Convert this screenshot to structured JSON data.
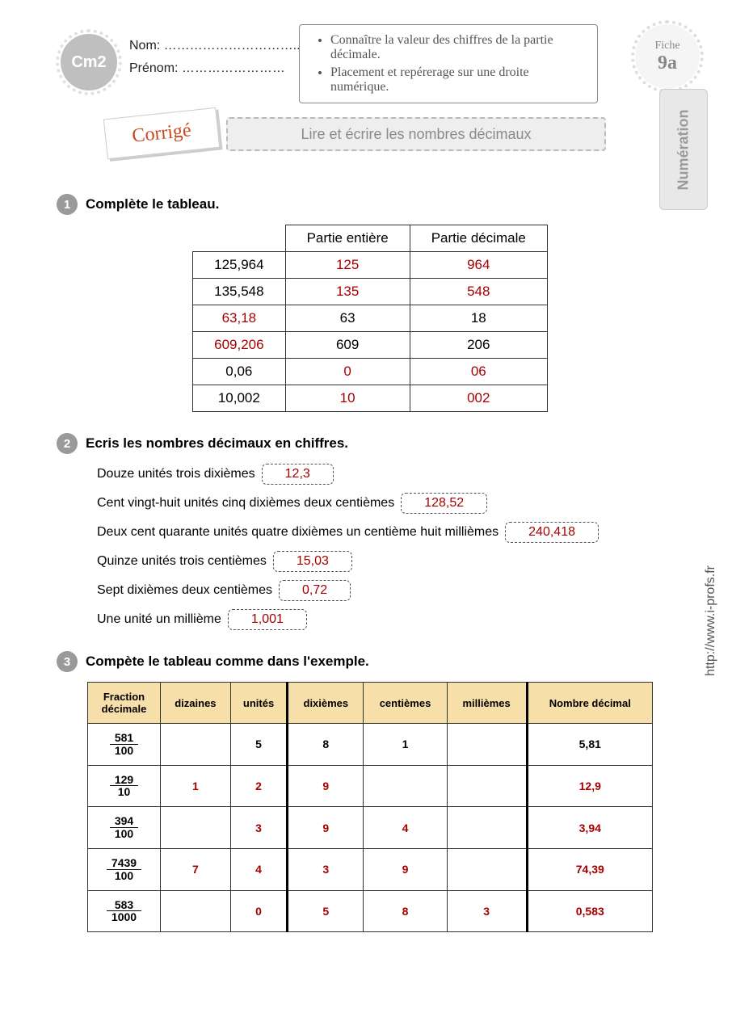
{
  "header": {
    "level": "Cm2",
    "nom_label": "Nom: …………………………..",
    "prenom_label": "Prénom: ……………………",
    "objectives": [
      "Connaître la valeur des chiffres de la partie décimale.",
      "Placement et repérerage sur une droite numérique."
    ],
    "fiche_label": "Fiche",
    "fiche_num": "9a",
    "side_tab": "Numération",
    "side_url": "http://www.i-profs.fr",
    "corrige": "Corrigé",
    "title": "Lire et écrire les nombres décimaux"
  },
  "colors": {
    "answer": "#a60000",
    "badge": "#bfbfbf",
    "th_bg": "#f6dfa9"
  },
  "ex1": {
    "num": "1",
    "title": "Complète le tableau.",
    "headers": [
      "",
      "Partie entière",
      "Partie décimale"
    ],
    "rows": [
      {
        "cells": [
          "125,964",
          "125",
          "964"
        ],
        "answer_cols": [
          1,
          2
        ]
      },
      {
        "cells": [
          "135,548",
          "135",
          "548"
        ],
        "answer_cols": [
          1,
          2
        ]
      },
      {
        "cells": [
          "63,18",
          "63",
          "18"
        ],
        "answer_cols": [
          0
        ]
      },
      {
        "cells": [
          "609,206",
          "609",
          "206"
        ],
        "answer_cols": [
          0
        ]
      },
      {
        "cells": [
          "0,06",
          "0",
          "06"
        ],
        "answer_cols": [
          1,
          2
        ]
      },
      {
        "cells": [
          "10,002",
          "10",
          "002"
        ],
        "answer_cols": [
          1,
          2
        ]
      }
    ]
  },
  "ex2": {
    "num": "2",
    "title": "Ecris les nombres décimaux en chiffres.",
    "lines": [
      {
        "text": "Douze unités trois dixièmes",
        "answer": "12,3"
      },
      {
        "text": "Cent vingt-huit unités cinq dixièmes deux centièmes",
        "answer": "128,52"
      },
      {
        "text": "Deux cent quarante unités quatre dixièmes un centième huit millièmes",
        "answer": "240,418"
      },
      {
        "text": "Quinze unités trois centièmes",
        "answer": "15,03"
      },
      {
        "text": "Sept dixièmes deux centièmes",
        "answer": "0,72"
      },
      {
        "text": "Une unité un millième",
        "answer": "1,001"
      }
    ]
  },
  "ex3": {
    "num": "3",
    "title": "Compète le tableau comme dans l'exemple.",
    "headers": [
      "Fraction décimale",
      "dizaines",
      "unités",
      "dixièmes",
      "centièmes",
      "millièmes",
      "Nombre décimal"
    ],
    "rows": [
      {
        "frac_num": "581",
        "frac_den": "100",
        "cells": [
          "",
          "5",
          "8",
          "1",
          "",
          "5,81"
        ],
        "is_example": true
      },
      {
        "frac_num": "129",
        "frac_den": "10",
        "cells": [
          "1",
          "2",
          "9",
          "",
          "",
          "12,9"
        ],
        "is_example": false
      },
      {
        "frac_num": "394",
        "frac_den": "100",
        "cells": [
          "",
          "3",
          "9",
          "4",
          "",
          "3,94"
        ],
        "is_example": false
      },
      {
        "frac_num": "7439",
        "frac_den": "100",
        "cells": [
          "7",
          "4",
          "3",
          "9",
          "",
          "74,39"
        ],
        "is_example": false
      },
      {
        "frac_num": "583",
        "frac_den": "1000",
        "cells": [
          "",
          "0",
          "5",
          "8",
          "3",
          "0,583"
        ],
        "is_example": false
      }
    ]
  }
}
